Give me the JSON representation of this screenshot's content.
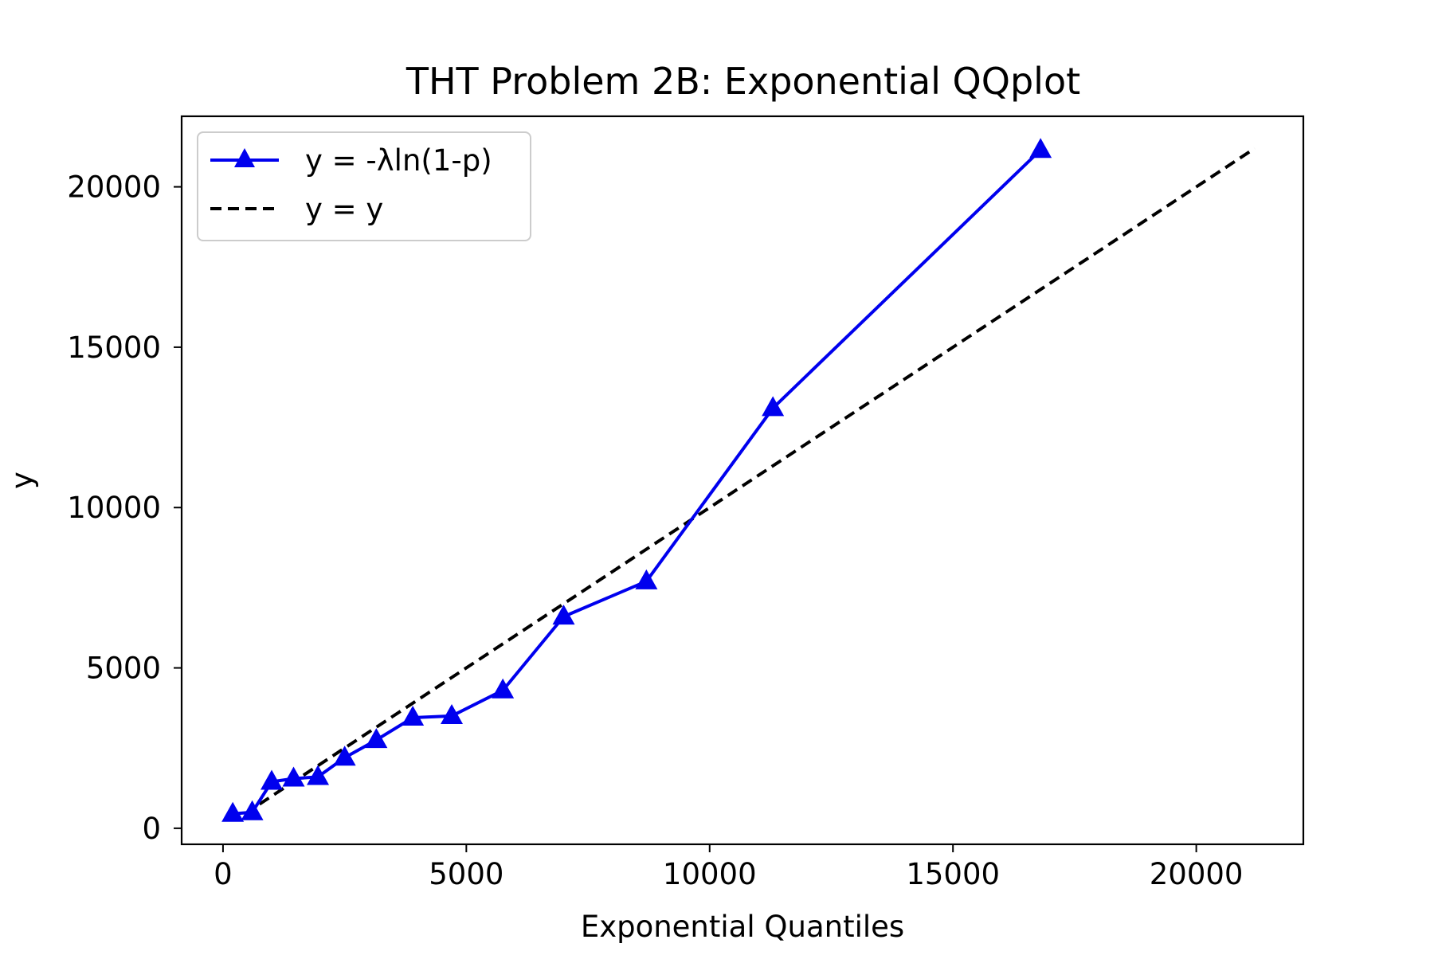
{
  "chart_data": {
    "type": "line",
    "title": "THT Problem 2B: Exponential QQplot",
    "xlabel": "Exponential Quantiles",
    "ylabel": "y",
    "xlim": [
      -850,
      22200
    ],
    "ylim": [
      -500,
      22200
    ],
    "xticks": [
      0,
      5000,
      10000,
      15000,
      20000
    ],
    "yticks": [
      0,
      5000,
      10000,
      15000,
      20000
    ],
    "grid": false,
    "legend_position": "upper left",
    "series": [
      {
        "name": "y = -λln(1-p)",
        "style": "solid",
        "marker": "triangle-up",
        "color": "#0000ee",
        "x": [
          200,
          600,
          1000,
          1450,
          1950,
          2500,
          3150,
          3900,
          4700,
          5750,
          7000,
          8700,
          11300,
          16800
        ],
        "y": [
          450,
          500,
          1450,
          1550,
          1600,
          2200,
          2750,
          3450,
          3500,
          4300,
          6600,
          7700,
          13100,
          21150
        ]
      },
      {
        "name": "y = y",
        "style": "dashed",
        "marker": "none",
        "color": "#000000",
        "x": [
          450,
          21200
        ],
        "y": [
          450,
          21200
        ]
      }
    ]
  }
}
